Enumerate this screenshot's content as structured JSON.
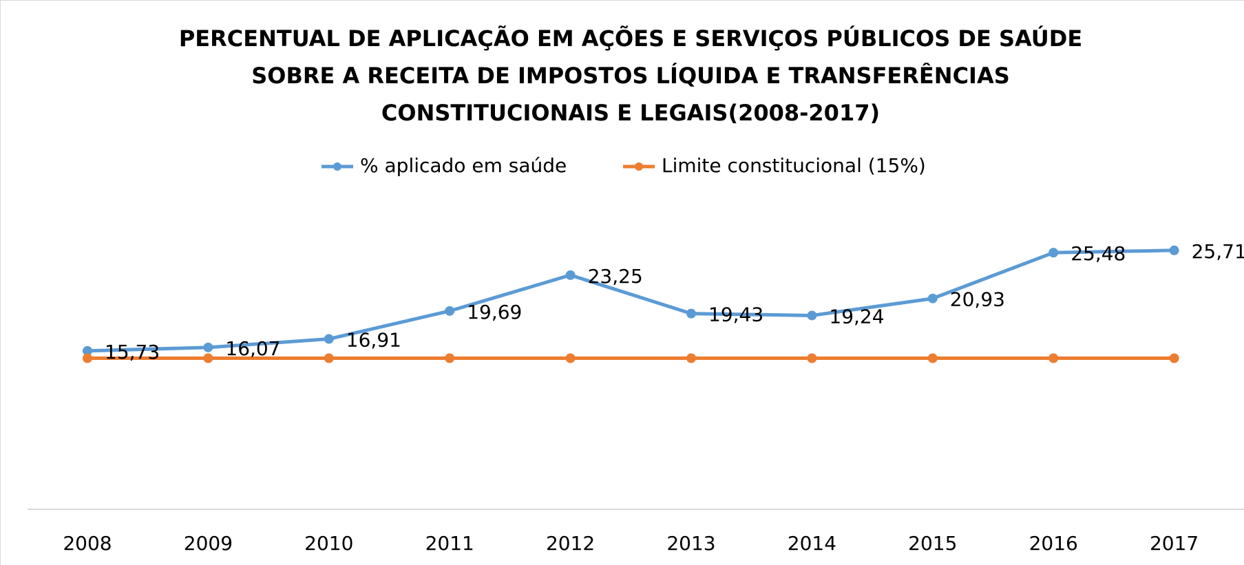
{
  "chart_data": {
    "type": "line",
    "title": [
      "PERCENTUAL DE APLICAÇÃO EM AÇÕES E SERVIÇOS PÚBLICOS DE SAÚDE",
      "SOBRE A RECEITA DE IMPOSTOS LÍQUIDA E TRANSFERÊNCIAS",
      "CONSTITUCIONAIS E LEGAIS(2008-2017)"
    ],
    "categories": [
      "2008",
      "2009",
      "2010",
      "2011",
      "2012",
      "2013",
      "2014",
      "2015",
      "2016",
      "2017"
    ],
    "series": [
      {
        "name": "% aplicado em saúde",
        "color": "#5b9bd5",
        "values": [
          15.73,
          16.07,
          16.91,
          19.69,
          23.25,
          19.43,
          19.24,
          20.93,
          25.48,
          25.71
        ],
        "value_labels": [
          "15,73",
          "16,07",
          "16,91",
          "19,69",
          "23,25",
          "19,43",
          "19,24",
          "20,93",
          "25,48",
          "25,71"
        ]
      },
      {
        "name": "Limite constitucional (15%)",
        "color": "#ed7d31",
        "values": [
          15,
          15,
          15,
          15,
          15,
          15,
          15,
          15,
          15,
          15
        ]
      }
    ],
    "ylim": [
      0,
      30
    ],
    "legend": "top"
  }
}
